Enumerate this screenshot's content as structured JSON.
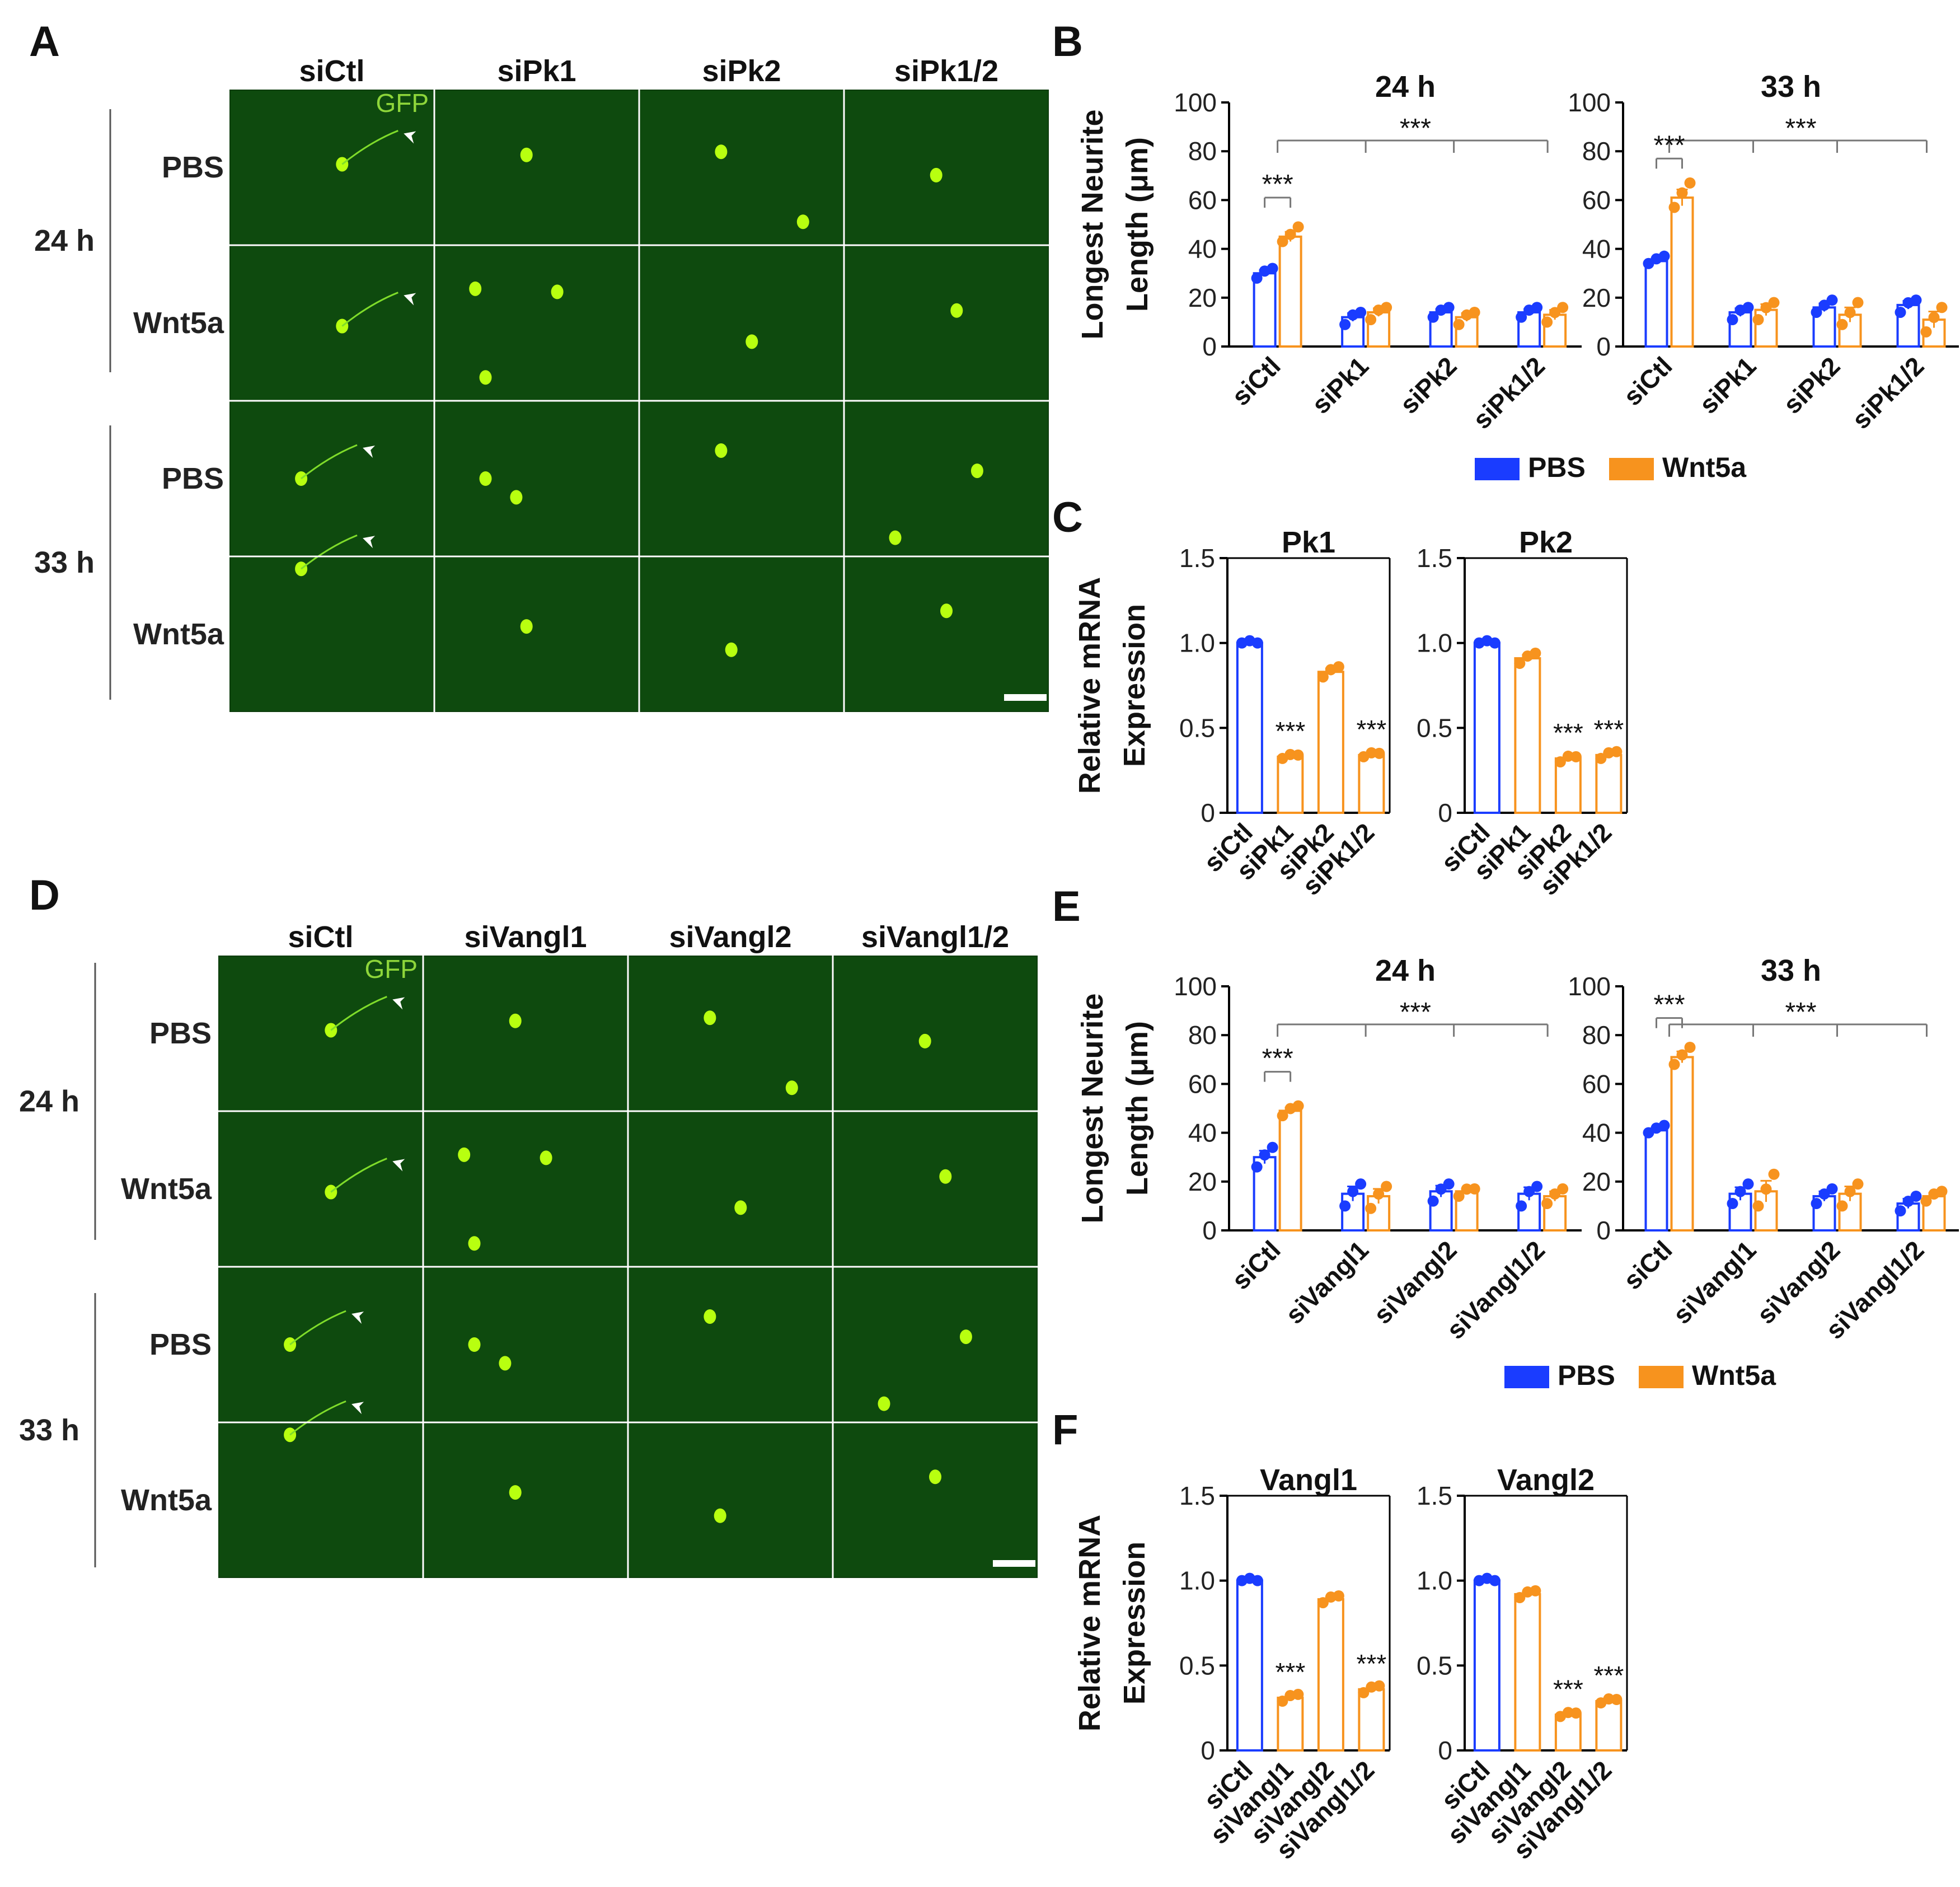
{
  "colors": {
    "pbs": "#1a3cff",
    "wnt5a": "#f7931e",
    "axis": "#000000",
    "cell": "#b8ff10",
    "panel_bg": "#0d3d0d"
  },
  "panel_letters": {
    "a": "A",
    "b": "B",
    "c": "C",
    "d": "D",
    "e": "E",
    "f": "F"
  },
  "sig": "***",
  "micro": [
    {
      "id": "A",
      "columns": [
        "siCtl",
        "siPk1",
        "siPk2",
        "siPk1/2"
      ],
      "channel_label": "GFP",
      "groups": [
        {
          "time": "24 h",
          "rows": [
            "PBS",
            "Wnt5a"
          ]
        },
        {
          "time": "33 h",
          "rows": [
            "PBS",
            "Wnt5a"
          ]
        }
      ]
    },
    {
      "id": "D",
      "columns": [
        "siCtl",
        "siVangl1",
        "siVangl2",
        "siVangl1/2"
      ],
      "channel_label": "GFP",
      "groups": [
        {
          "time": "24 h",
          "rows": [
            "PBS",
            "Wnt5a"
          ]
        },
        {
          "time": "33 h",
          "rows": [
            "PBS",
            "Wnt5a"
          ]
        }
      ]
    }
  ],
  "legend": {
    "pbs": "PBS",
    "wnt5a": "Wnt5a"
  },
  "chart_data": [
    {
      "panel": "B",
      "type": "bar",
      "title": "24 h",
      "ylabel": "Longest Neurite Length (μm)",
      "ylim": [
        0,
        100
      ],
      "yticks": [
        "0",
        "20",
        "40",
        "60",
        "80",
        "100"
      ],
      "categories": [
        "siCtl",
        "siPk1",
        "siPk2",
        "siPk1/2"
      ],
      "series": [
        {
          "name": "PBS",
          "values": [
            30,
            12,
            14,
            14
          ],
          "points": [
            [
              28,
              30,
              32
            ],
            [
              9,
              12,
              14
            ],
            [
              12,
              14,
              16
            ],
            [
              12,
              14,
              16
            ]
          ]
        },
        {
          "name": "Wnt5a",
          "values": [
            45,
            14,
            12,
            13
          ],
          "points": [
            [
              43,
              45,
              49
            ],
            [
              11,
              14,
              16
            ],
            [
              9,
              12,
              14
            ],
            [
              10,
              13,
              16
            ]
          ]
        }
      ]
    },
    {
      "panel": "B",
      "type": "bar",
      "title": "33 h",
      "ylabel": "",
      "ylim": [
        0,
        100
      ],
      "yticks": [
        "0",
        "20",
        "40",
        "60",
        "80",
        "100"
      ],
      "categories": [
        "siCtl",
        "siPk1",
        "siPk2",
        "siPk1/2"
      ],
      "series": [
        {
          "name": "PBS",
          "values": [
            35,
            14,
            16,
            17
          ],
          "points": [
            [
              34,
              35,
              37
            ],
            [
              11,
              14,
              16
            ],
            [
              14,
              16,
              19
            ],
            [
              14,
              17,
              19
            ]
          ]
        },
        {
          "name": "Wnt5a",
          "values": [
            61,
            15,
            13,
            11
          ],
          "points": [
            [
              57,
              62,
              67
            ],
            [
              11,
              15,
              18
            ],
            [
              9,
              13,
              18
            ],
            [
              6,
              11,
              16
            ]
          ]
        }
      ]
    },
    {
      "panel": "C",
      "type": "bar",
      "title": "Pk1",
      "ylabel": "Relative mRNA Expression",
      "ylim": [
        0,
        1.5
      ],
      "yticks": [
        "0",
        "0.5",
        "1.0",
        "1.5"
      ],
      "categories": [
        "siCtl",
        "siPk1",
        "siPk2",
        "siPk1/2"
      ],
      "series": [
        {
          "name": "",
          "colors": [
            "PBS",
            "Wnt5a",
            "Wnt5a",
            "Wnt5a"
          ],
          "values": [
            1.0,
            0.33,
            0.83,
            0.34
          ],
          "points": [
            [
              1.0,
              1.0,
              1.0
            ],
            [
              0.32,
              0.33,
              0.34
            ],
            [
              0.8,
              0.83,
              0.86
            ],
            [
              0.33,
              0.34,
              0.35
            ]
          ]
        }
      ]
    },
    {
      "panel": "C",
      "type": "bar",
      "title": "Pk2",
      "ylabel": "",
      "ylim": [
        0,
        1.5
      ],
      "yticks": [
        "0",
        "0.5",
        "1.0",
        "1.5"
      ],
      "categories": [
        "siCtl",
        "siPk1",
        "siPk2",
        "siPk1/2"
      ],
      "series": [
        {
          "name": "",
          "colors": [
            "PBS",
            "Wnt5a",
            "Wnt5a",
            "Wnt5a"
          ],
          "values": [
            1.0,
            0.91,
            0.32,
            0.34
          ],
          "points": [
            [
              1.0,
              1.0,
              1.0
            ],
            [
              0.88,
              0.91,
              0.94
            ],
            [
              0.3,
              0.32,
              0.33
            ],
            [
              0.32,
              0.34,
              0.36
            ]
          ]
        }
      ]
    },
    {
      "panel": "E",
      "type": "bar",
      "title": "24 h",
      "ylabel": "Longest Neurite Length (μm)",
      "ylim": [
        0,
        100
      ],
      "yticks": [
        "0",
        "20",
        "40",
        "60",
        "80",
        "100"
      ],
      "categories": [
        "siCtl",
        "siVangl1",
        "siVangl2",
        "siVangl1/2"
      ],
      "series": [
        {
          "name": "PBS",
          "values": [
            30,
            15,
            16,
            15
          ],
          "points": [
            [
              26,
              30,
              34
            ],
            [
              10,
              15,
              19
            ],
            [
              12,
              16,
              19
            ],
            [
              10,
              15,
              18
            ]
          ]
        },
        {
          "name": "Wnt5a",
          "values": [
            49,
            14,
            16,
            14
          ],
          "points": [
            [
              47,
              49,
              51
            ],
            [
              9,
              14,
              18
            ],
            [
              14,
              16,
              17
            ],
            [
              11,
              14,
              17
            ]
          ]
        }
      ]
    },
    {
      "panel": "E",
      "type": "bar",
      "title": "33 h",
      "ylabel": "",
      "ylim": [
        0,
        100
      ],
      "yticks": [
        "0",
        "20",
        "40",
        "60",
        "80",
        "100"
      ],
      "categories": [
        "siCtl",
        "siVangl1",
        "siVangl2",
        "siVangl1/2"
      ],
      "series": [
        {
          "name": "PBS",
          "values": [
            41,
            15,
            14,
            11
          ],
          "points": [
            [
              40,
              41,
              43
            ],
            [
              11,
              15,
              19
            ],
            [
              11,
              14,
              17
            ],
            [
              8,
              11,
              14
            ]
          ]
        },
        {
          "name": "Wnt5a",
          "values": [
            71,
            16,
            15,
            14
          ],
          "points": [
            [
              68,
              71,
              75
            ],
            [
              10,
              16,
              23
            ],
            [
              10,
              15,
              19
            ],
            [
              12,
              14,
              16
            ]
          ]
        }
      ]
    },
    {
      "panel": "F",
      "type": "bar",
      "title": "Vangl1",
      "ylabel": "Relative mRNA Expression",
      "ylim": [
        0,
        1.5
      ],
      "yticks": [
        "0",
        "0.5",
        "1.0",
        "1.5"
      ],
      "categories": [
        "siCtl",
        "siVangl1",
        "siVangl2",
        "siVangl1/2"
      ],
      "series": [
        {
          "name": "",
          "colors": [
            "PBS",
            "Wnt5a",
            "Wnt5a",
            "Wnt5a"
          ],
          "values": [
            1.0,
            0.31,
            0.89,
            0.36
          ],
          "points": [
            [
              1.0,
              1.0,
              1.0
            ],
            [
              0.29,
              0.31,
              0.33
            ],
            [
              0.87,
              0.89,
              0.91
            ],
            [
              0.34,
              0.36,
              0.38
            ]
          ]
        }
      ]
    },
    {
      "panel": "F",
      "type": "bar",
      "title": "Vangl2",
      "ylabel": "",
      "ylim": [
        0,
        1.5
      ],
      "yticks": [
        "0",
        "0.5",
        "1.0",
        "1.5"
      ],
      "categories": [
        "siCtl",
        "siVangl1",
        "siVangl2",
        "siVangl1/2"
      ],
      "series": [
        {
          "name": "",
          "colors": [
            "PBS",
            "Wnt5a",
            "Wnt5a",
            "Wnt5a"
          ],
          "values": [
            1.0,
            0.92,
            0.21,
            0.29
          ],
          "points": [
            [
              1.0,
              1.0,
              1.0
            ],
            [
              0.9,
              0.92,
              0.94
            ],
            [
              0.2,
              0.21,
              0.22
            ],
            [
              0.28,
              0.29,
              0.3
            ]
          ]
        }
      ]
    }
  ]
}
